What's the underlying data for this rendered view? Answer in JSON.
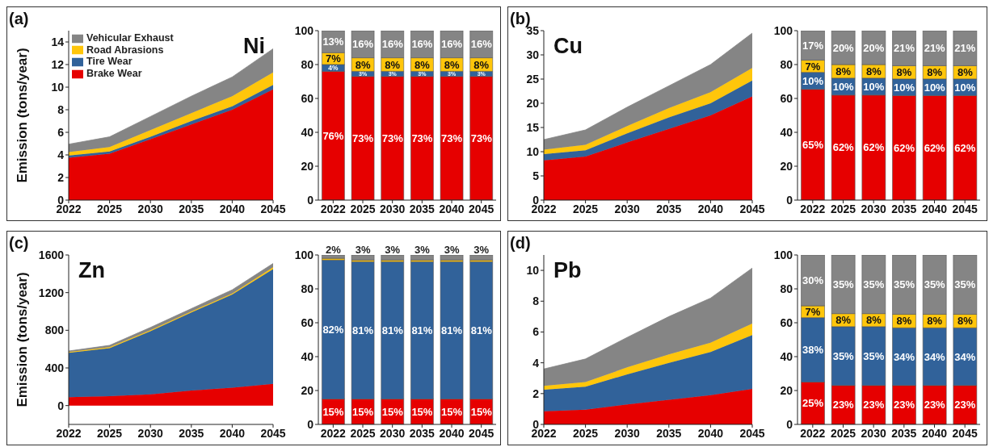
{
  "chart_data": [
    {
      "type": "area",
      "title": "Ni",
      "ylabel": "Emission (tons/year)",
      "annotations": [
        "(a)"
      ],
      "categories": [
        "2022",
        "2025",
        "2030",
        "2035",
        "2040",
        "2045"
      ],
      "stacked": true,
      "ylim": [
        0,
        15
      ],
      "yticks": [
        0,
        2,
        4,
        6,
        8,
        10,
        12,
        14
      ],
      "legend": "top left",
      "series": [
        {
          "name": "Brake Wear",
          "color": "#e60000",
          "values": [
            3.75,
            4.1,
            5.4,
            6.7,
            8.0,
            9.8
          ]
        },
        {
          "name": "Tire Wear",
          "color": "#31629a",
          "values": [
            0.2,
            0.2,
            0.2,
            0.3,
            0.3,
            0.4
          ]
        },
        {
          "name": "Road Abrasions",
          "color": "#ffc60b",
          "values": [
            0.3,
            0.4,
            0.6,
            0.7,
            0.9,
            1.1
          ]
        },
        {
          "name": "Vehicular Exhaust",
          "color": "#858585",
          "values": [
            0.7,
            0.9,
            1.2,
            1.5,
            1.7,
            2.1
          ]
        }
      ]
    },
    {
      "type": "bar",
      "categories": [
        "2022",
        "2025",
        "2030",
        "2035",
        "2040",
        "2045"
      ],
      "stacked": true,
      "ylim": [
        0,
        100
      ],
      "yticks": [
        0,
        20,
        40,
        60,
        80,
        100
      ],
      "series": [
        {
          "color": "#e60000",
          "values": [
            76,
            73,
            73,
            73,
            73,
            73
          ],
          "value_labels": [
            "76%",
            "73%",
            "73%",
            "73%",
            "73%",
            "73%"
          ]
        },
        {
          "color": "#31629a",
          "values": [
            4,
            3,
            3,
            3,
            3,
            3
          ],
          "value_labels": [
            "4%",
            "3%",
            "3%",
            "3%",
            "3%",
            "3%"
          ]
        },
        {
          "color": "#ffc60b",
          "values": [
            7,
            8,
            8,
            8,
            8,
            8
          ],
          "value_labels": [
            "7%",
            "8%",
            "8%",
            "8%",
            "8%",
            "8%"
          ]
        },
        {
          "color": "#858585",
          "values": [
            13,
            16,
            16,
            16,
            16,
            16
          ],
          "value_labels": [
            "13%",
            "16%",
            "16%",
            "16%",
            "16%",
            "16%"
          ]
        }
      ]
    },
    {
      "type": "area",
      "title": "Cu",
      "annotations": [
        "(b)"
      ],
      "categories": [
        "2022",
        "2025",
        "2030",
        "2035",
        "2040",
        "2045"
      ],
      "stacked": true,
      "ylim": [
        0,
        35
      ],
      "yticks": [
        0,
        5,
        10,
        15,
        20,
        25,
        30,
        35
      ],
      "series": [
        {
          "color": "#e60000",
          "values": [
            8.2,
            9.0,
            11.9,
            14.7,
            17.5,
            21.4
          ]
        },
        {
          "color": "#31629a",
          "values": [
            1.3,
            1.3,
            1.9,
            2.4,
            2.5,
            3.3
          ]
        },
        {
          "color": "#ffc60b",
          "values": [
            0.9,
            1.1,
            1.5,
            1.9,
            2.3,
            2.6
          ]
        },
        {
          "color": "#858585",
          "values": [
            2.1,
            3.1,
            3.9,
            4.6,
            5.7,
            7.2
          ]
        }
      ]
    },
    {
      "type": "bar",
      "categories": [
        "2022",
        "2025",
        "2030",
        "2035",
        "2040",
        "2045"
      ],
      "stacked": true,
      "ylim": [
        0,
        100
      ],
      "yticks": [
        0,
        20,
        40,
        60,
        80,
        100
      ],
      "series": [
        {
          "color": "#e60000",
          "values": [
            65.4,
            62,
            62,
            61.7,
            61.7,
            61.7
          ],
          "value_labels": [
            "65%",
            "62%",
            "62%",
            "62%",
            "62%",
            "62%"
          ]
        },
        {
          "color": "#31629a",
          "values": [
            10,
            10,
            10,
            9.8,
            9.8,
            9.8
          ],
          "value_labels": [
            "10%",
            "10%",
            "10%",
            "10%",
            "10%",
            "10%"
          ]
        },
        {
          "color": "#ffc60b",
          "values": [
            7.2,
            8,
            8,
            7.8,
            7.8,
            7.8
          ],
          "value_labels": [
            "7%",
            "8%",
            "8%",
            "8%",
            "8%",
            "8%"
          ]
        },
        {
          "color": "#858585",
          "values": [
            17.4,
            20,
            20,
            20.7,
            20.7,
            20.7
          ],
          "value_labels": [
            "17%",
            "20%",
            "20%",
            "21%",
            "21%",
            "21%"
          ]
        }
      ]
    },
    {
      "type": "area",
      "title": "Zn",
      "ylabel": "Emission (tons/year)",
      "annotations": [
        "(c)"
      ],
      "categories": [
        "2022",
        "2025",
        "2030",
        "2035",
        "2040",
        "2045"
      ],
      "stacked": true,
      "ylim": [
        -200,
        1600
      ],
      "yticks": [
        0,
        400,
        800,
        1200,
        1600
      ],
      "series": [
        {
          "color": "#e60000",
          "values": [
            90,
            100,
            120,
            160,
            190,
            230
          ]
        },
        {
          "color": "#31629a",
          "values": [
            470,
            510,
            670,
            830,
            990,
            1220
          ]
        },
        {
          "color": "#ffc60b",
          "values": [
            10,
            10,
            10,
            10,
            10,
            20
          ]
        },
        {
          "color": "#858585",
          "values": [
            10,
            20,
            30,
            30,
            40,
            40
          ]
        }
      ]
    },
    {
      "type": "bar",
      "categories": [
        "2022",
        "2025",
        "2030",
        "2035",
        "2040",
        "2045"
      ],
      "stacked": true,
      "ylim": [
        0,
        100
      ],
      "yticks": [
        0,
        20,
        40,
        60,
        80,
        100
      ],
      "series": [
        {
          "color": "#e60000",
          "values": [
            15,
            15,
            15,
            15,
            15,
            15
          ],
          "value_labels": [
            "15%",
            "15%",
            "15%",
            "15%",
            "15%",
            "15%"
          ]
        },
        {
          "color": "#31629a",
          "values": [
            82,
            81,
            81,
            81,
            81,
            81
          ],
          "value_labels": [
            "82%",
            "81%",
            "81%",
            "81%",
            "81%",
            "81%"
          ]
        },
        {
          "color": "#ffc60b",
          "values": [
            1,
            1,
            1,
            1,
            1,
            1
          ],
          "value_labels": [
            null,
            null,
            null,
            null,
            null,
            null
          ]
        },
        {
          "color": "#858585",
          "values": [
            2,
            3,
            3,
            3,
            3,
            3
          ],
          "value_labels": [
            "2%",
            "3%",
            "3%",
            "3%",
            "3%",
            "3%"
          ]
        }
      ]
    },
    {
      "type": "area",
      "title": "Pb",
      "annotations": [
        "(d)"
      ],
      "categories": [
        "2022",
        "2025",
        "2030",
        "2035",
        "2040",
        "2045"
      ],
      "stacked": true,
      "ylim": [
        0,
        11
      ],
      "yticks": [
        0,
        2,
        4,
        6,
        8,
        10
      ],
      "series": [
        {
          "color": "#e60000",
          "values": [
            0.85,
            0.95,
            1.3,
            1.6,
            1.9,
            2.3
          ]
        },
        {
          "color": "#31629a",
          "values": [
            1.4,
            1.5,
            1.95,
            2.4,
            2.8,
            3.5
          ]
        },
        {
          "color": "#ffc60b",
          "values": [
            0.25,
            0.3,
            0.45,
            0.55,
            0.6,
            0.75
          ]
        },
        {
          "color": "#858585",
          "values": [
            1.1,
            1.5,
            1.95,
            2.45,
            2.9,
            3.6
          ]
        }
      ]
    },
    {
      "type": "bar",
      "categories": [
        "2022",
        "2025",
        "2030",
        "2035",
        "2040",
        "2045"
      ],
      "stacked": true,
      "ylim": [
        0,
        100
      ],
      "yticks": [
        0,
        20,
        40,
        60,
        80,
        100
      ],
      "series": [
        {
          "color": "#e60000",
          "values": [
            25,
            23,
            23,
            23,
            23,
            23
          ],
          "value_labels": [
            "25%",
            "23%",
            "23%",
            "23%",
            "23%",
            "23%"
          ]
        },
        {
          "color": "#31629a",
          "values": [
            38,
            34.7,
            34.7,
            34,
            34,
            34
          ],
          "value_labels": [
            "38%",
            "35%",
            "35%",
            "34%",
            "34%",
            "34%"
          ]
        },
        {
          "color": "#ffc60b",
          "values": [
            7,
            7.7,
            7.7,
            8,
            8,
            8
          ],
          "value_labels": [
            "7%",
            "8%",
            "8%",
            "8%",
            "8%",
            "8%"
          ]
        },
        {
          "color": "#858585",
          "values": [
            30,
            34.6,
            34.6,
            35,
            35,
            35
          ],
          "value_labels": [
            "30%",
            "35%",
            "35%",
            "35%",
            "35%",
            "35%"
          ]
        }
      ]
    }
  ]
}
